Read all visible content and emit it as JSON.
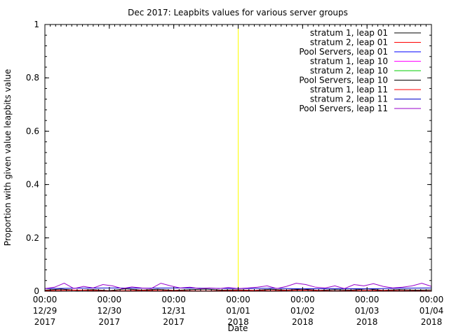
{
  "chart_data": {
    "type": "line",
    "title": "Dec 2017: Leapbits values for various server groups",
    "xlabel": "Date",
    "ylabel": "Proportion with given value leapbits value",
    "ylim": [
      0,
      1
    ],
    "xlim": [
      "2017-12-29 00:00",
      "2018-01-04 00:00"
    ],
    "yticks": [
      "0",
      "0.2",
      "0.4",
      "0.6",
      "0.8",
      "1"
    ],
    "xticks": [
      {
        "time": "00:00",
        "date": "12/29",
        "year": "2017"
      },
      {
        "time": "00:00",
        "date": "12/30",
        "year": "2017"
      },
      {
        "time": "00:00",
        "date": "12/31",
        "year": "2017"
      },
      {
        "time": "00:00",
        "date": "01/01",
        "year": "2018"
      },
      {
        "time": "00:00",
        "date": "01/02",
        "year": "2018"
      },
      {
        "time": "00:00",
        "date": "01/03",
        "year": "2018"
      },
      {
        "time": "00:00",
        "date": "01/04",
        "year": "2018"
      }
    ],
    "grid": false,
    "legend_position": "top-right",
    "marker": {
      "x": "2018-01-01 00:00",
      "color": "#ffff00"
    },
    "series": [
      {
        "name": "stratum 1, leap 01",
        "color": "#000000",
        "x_days": [
          0,
          6
        ],
        "values": [
          0,
          0
        ]
      },
      {
        "name": "stratum 2, leap 01",
        "color": "#ff0000",
        "x_days": [
          0,
          6
        ],
        "values": [
          0,
          0
        ]
      },
      {
        "name": "Pool Servers, leap 01",
        "color": "#0000ff",
        "x_days": [
          0,
          6
        ],
        "values": [
          0,
          0
        ]
      },
      {
        "name": "stratum 1, leap 10",
        "color": "#ff00ff",
        "x_days": [
          0,
          6
        ],
        "values": [
          0,
          0
        ]
      },
      {
        "name": "stratum 2, leap 10",
        "color": "#00cc00",
        "x_days": [
          0,
          6
        ],
        "values": [
          0,
          0
        ]
      },
      {
        "name": "Pool Servers, leap 10",
        "color": "#000000",
        "x_days": [
          0,
          0.25,
          0.5,
          0.75,
          1.0,
          1.25,
          1.5,
          1.75,
          2.0,
          2.25,
          2.5,
          2.75,
          3.0,
          3.25,
          3.5,
          3.75,
          4.0,
          4.25,
          4.5,
          4.75,
          5.0,
          5.25,
          5.5,
          5.75,
          6.0
        ],
        "values": [
          0.004,
          0.008,
          0.003,
          0.006,
          0.002,
          0.009,
          0.004,
          0.007,
          0.003,
          0.006,
          0.008,
          0.004,
          0.005,
          0.003,
          0.007,
          0.004,
          0.008,
          0.003,
          0.006,
          0.004,
          0.009,
          0.003,
          0.006,
          0.004,
          0.005
        ]
      },
      {
        "name": "stratum 1, leap 11",
        "color": "#ff0000",
        "x_days": [
          0,
          0.5,
          1.0,
          1.5,
          2.0,
          2.5,
          3.0,
          3.5,
          4.0,
          4.5,
          5.0,
          5.5,
          6.0
        ],
        "values": [
          0.002,
          0.004,
          0.001,
          0.003,
          0.002,
          0.001,
          0.003,
          0.002,
          0.004,
          0.001,
          0.003,
          0.002,
          0.001
        ]
      },
      {
        "name": "stratum 2, leap 11",
        "color": "#0000cc",
        "x_days": [
          0,
          0.5,
          1.0,
          1.5,
          2.0,
          2.5,
          3.0,
          3.5,
          4.0,
          4.5,
          5.0,
          5.5,
          6.0
        ],
        "values": [
          0.01,
          0.011,
          0.012,
          0.011,
          0.012,
          0.011,
          0.01,
          0.011,
          0.009,
          0.01,
          0.009,
          0.011,
          0.012
        ]
      },
      {
        "name": "Pool Servers, leap 11",
        "color": "#9900cc",
        "x_days": [
          0,
          0.15,
          0.3,
          0.45,
          0.6,
          0.75,
          0.9,
          1.05,
          1.2,
          1.35,
          1.5,
          1.65,
          1.8,
          1.95,
          2.1,
          2.25,
          2.4,
          2.55,
          2.7,
          2.85,
          3.0,
          3.15,
          3.3,
          3.45,
          3.6,
          3.75,
          3.9,
          4.05,
          4.2,
          4.35,
          4.5,
          4.65,
          4.8,
          4.95,
          5.1,
          5.25,
          5.4,
          5.55,
          5.7,
          5.85,
          6.0
        ],
        "values": [
          0.01,
          0.015,
          0.03,
          0.01,
          0.018,
          0.012,
          0.025,
          0.02,
          0.01,
          0.016,
          0.012,
          0.01,
          0.03,
          0.02,
          0.012,
          0.015,
          0.01,
          0.012,
          0.01,
          0.014,
          0.01,
          0.012,
          0.015,
          0.02,
          0.01,
          0.018,
          0.03,
          0.025,
          0.015,
          0.012,
          0.02,
          0.01,
          0.025,
          0.02,
          0.028,
          0.018,
          0.012,
          0.015,
          0.02,
          0.03,
          0.018
        ]
      }
    ]
  }
}
